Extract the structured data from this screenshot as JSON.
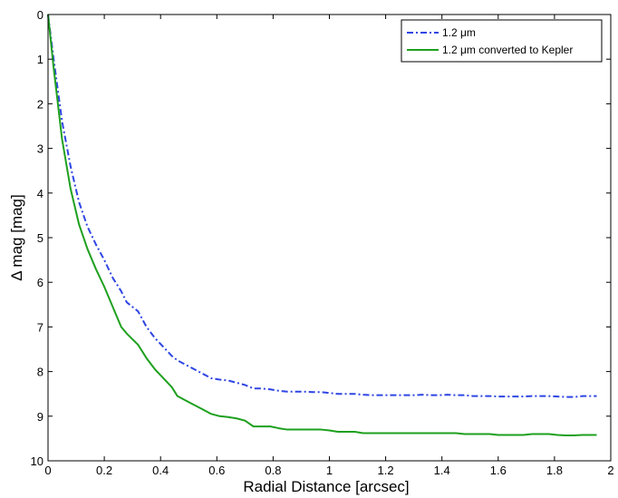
{
  "chart_data": {
    "type": "line",
    "xlabel": "Radial Distance [arcsec]",
    "ylabel": "Δ mag [mag]",
    "xlim": [
      0,
      2
    ],
    "ylim": [
      0,
      10
    ],
    "y_inverted": true,
    "grid": false,
    "legend_position": "top-right",
    "xticks": [
      0,
      0.2,
      0.4,
      0.6,
      0.8,
      1,
      1.2,
      1.4,
      1.6,
      1.8,
      2
    ],
    "xtick_labels": [
      "0",
      "0.2",
      "0.4",
      "0.6",
      "0.8",
      "1",
      "1.2",
      "1.4",
      "1.6",
      "1.8",
      "2"
    ],
    "yticks": [
      0,
      1,
      2,
      3,
      4,
      5,
      6,
      7,
      8,
      9,
      10
    ],
    "ytick_labels": [
      "0",
      "1",
      "2",
      "3",
      "4",
      "5",
      "6",
      "7",
      "8",
      "9",
      "10"
    ],
    "series": [
      {
        "name": "1.2 μm",
        "color": "#2f46e3",
        "style": "dash-dot",
        "x": [
          0,
          0.02,
          0.05,
          0.08,
          0.11,
          0.14,
          0.17,
          0.2,
          0.23,
          0.26,
          0.28,
          0.32,
          0.35,
          0.38,
          0.41,
          0.44,
          0.46,
          0.49,
          0.52,
          0.55,
          0.58,
          0.61,
          0.64,
          0.67,
          0.7,
          0.73,
          0.76,
          0.79,
          0.82,
          0.85,
          0.88,
          0.91,
          0.94,
          0.97,
          1.0,
          1.03,
          1.06,
          1.09,
          1.12,
          1.15,
          1.18,
          1.21,
          1.24,
          1.27,
          1.3,
          1.33,
          1.36,
          1.39,
          1.42,
          1.45,
          1.48,
          1.51,
          1.54,
          1.57,
          1.6,
          1.63,
          1.66,
          1.69,
          1.72,
          1.75,
          1.78,
          1.81,
          1.84,
          1.87,
          1.9,
          1.93,
          1.95
        ],
        "y": [
          0,
          1.0,
          2.4,
          3.4,
          4.2,
          4.75,
          5.15,
          5.5,
          5.9,
          6.2,
          6.45,
          6.65,
          7.0,
          7.25,
          7.45,
          7.65,
          7.75,
          7.85,
          7.95,
          8.05,
          8.15,
          8.18,
          8.2,
          8.25,
          8.3,
          8.38,
          8.38,
          8.4,
          8.43,
          8.45,
          8.45,
          8.45,
          8.46,
          8.46,
          8.48,
          8.5,
          8.5,
          8.5,
          8.52,
          8.53,
          8.53,
          8.53,
          8.53,
          8.53,
          8.53,
          8.52,
          8.53,
          8.53,
          8.52,
          8.53,
          8.53,
          8.55,
          8.55,
          8.55,
          8.56,
          8.56,
          8.56,
          8.56,
          8.55,
          8.55,
          8.55,
          8.56,
          8.57,
          8.57,
          8.55,
          8.55,
          8.55
        ]
      },
      {
        "name": "1.2 μm converted to Kepler",
        "color": "#1ea01e",
        "style": "solid",
        "x": [
          0,
          0.02,
          0.05,
          0.08,
          0.11,
          0.14,
          0.17,
          0.2,
          0.23,
          0.26,
          0.28,
          0.32,
          0.35,
          0.38,
          0.41,
          0.44,
          0.46,
          0.49,
          0.52,
          0.55,
          0.58,
          0.61,
          0.64,
          0.67,
          0.7,
          0.73,
          0.76,
          0.79,
          0.82,
          0.85,
          0.88,
          0.91,
          0.94,
          0.97,
          1.0,
          1.03,
          1.06,
          1.09,
          1.12,
          1.15,
          1.18,
          1.21,
          1.24,
          1.27,
          1.3,
          1.33,
          1.36,
          1.39,
          1.42,
          1.45,
          1.48,
          1.51,
          1.54,
          1.57,
          1.6,
          1.63,
          1.66,
          1.69,
          1.72,
          1.75,
          1.78,
          1.81,
          1.84,
          1.87,
          1.9,
          1.93,
          1.95
        ],
        "y": [
          0,
          1.2,
          2.8,
          3.9,
          4.7,
          5.25,
          5.7,
          6.1,
          6.55,
          7.0,
          7.15,
          7.4,
          7.7,
          7.95,
          8.15,
          8.35,
          8.55,
          8.65,
          8.75,
          8.85,
          8.95,
          9.0,
          9.02,
          9.05,
          9.1,
          9.23,
          9.23,
          9.23,
          9.27,
          9.3,
          9.3,
          9.3,
          9.3,
          9.3,
          9.32,
          9.35,
          9.35,
          9.35,
          9.38,
          9.38,
          9.38,
          9.38,
          9.38,
          9.38,
          9.38,
          9.38,
          9.38,
          9.38,
          9.38,
          9.38,
          9.4,
          9.4,
          9.4,
          9.4,
          9.42,
          9.42,
          9.42,
          9.42,
          9.4,
          9.4,
          9.4,
          9.42,
          9.43,
          9.43,
          9.42,
          9.42,
          9.42
        ]
      }
    ]
  }
}
